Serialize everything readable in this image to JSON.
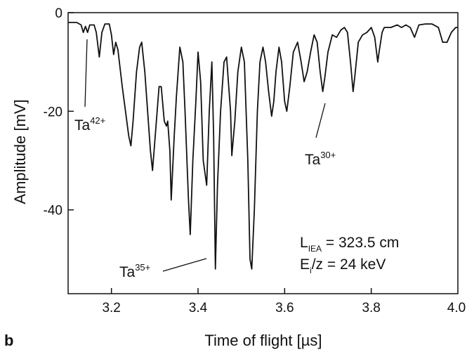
{
  "chart_data": {
    "type": "line",
    "panel_label": "b",
    "xlabel": "Time of flight [µs]",
    "ylabel": "Amplitude [mV]",
    "xlim": [
      3.1,
      4.0
    ],
    "ylim": [
      -57,
      0
    ],
    "grid": false,
    "x_ticks": [
      3.2,
      3.4,
      3.6,
      3.8
    ],
    "x_tick_labels": [
      "3.2",
      "3.4",
      "3.6",
      "3.8"
    ],
    "x_end_label": "4.0",
    "y_ticks": [
      0,
      -20,
      -40
    ],
    "y_tick_labels": [
      "0",
      "-20",
      "-40"
    ],
    "series": [
      {
        "points": [
          [
            3.1,
            -2
          ],
          [
            3.12,
            -2
          ],
          [
            3.13,
            -2.5
          ],
          [
            3.135,
            -4
          ],
          [
            3.14,
            -2.8
          ],
          [
            3.145,
            -4
          ],
          [
            3.15,
            -2.5
          ],
          [
            3.16,
            -2.5
          ],
          [
            3.165,
            -4
          ],
          [
            3.172,
            -9
          ],
          [
            3.178,
            -4
          ],
          [
            3.185,
            -2.3
          ],
          [
            3.195,
            -2.3
          ],
          [
            3.2,
            -4.5
          ],
          [
            3.205,
            -8.5
          ],
          [
            3.21,
            -6
          ],
          [
            3.215,
            -7.5
          ],
          [
            3.225,
            -15
          ],
          [
            3.24,
            -25
          ],
          [
            3.245,
            -27
          ],
          [
            3.25,
            -22
          ],
          [
            3.258,
            -12
          ],
          [
            3.265,
            -7
          ],
          [
            3.27,
            -6
          ],
          [
            3.277,
            -12
          ],
          [
            3.29,
            -28
          ],
          [
            3.295,
            -32
          ],
          [
            3.302,
            -24
          ],
          [
            3.31,
            -15
          ],
          [
            3.315,
            -15
          ],
          [
            3.322,
            -22
          ],
          [
            3.327,
            -23
          ],
          [
            3.33,
            -22
          ],
          [
            3.335,
            -28
          ],
          [
            3.338,
            -38
          ],
          [
            3.345,
            -25
          ],
          [
            3.35,
            -17
          ],
          [
            3.358,
            -7
          ],
          [
            3.365,
            -10
          ],
          [
            3.37,
            -20
          ],
          [
            3.378,
            -38
          ],
          [
            3.382,
            -45
          ],
          [
            3.388,
            -30
          ],
          [
            3.395,
            -18
          ],
          [
            3.4,
            -8
          ],
          [
            3.406,
            -14
          ],
          [
            3.412,
            -30
          ],
          [
            3.42,
            -35
          ],
          [
            3.426,
            -20
          ],
          [
            3.432,
            -10
          ],
          [
            3.436,
            -25
          ],
          [
            3.44,
            -52
          ],
          [
            3.445,
            -35
          ],
          [
            3.452,
            -20
          ],
          [
            3.46,
            -10
          ],
          [
            3.466,
            -9
          ],
          [
            3.47,
            -14
          ],
          [
            3.475,
            -20
          ],
          [
            3.478,
            -29
          ],
          [
            3.485,
            -22
          ],
          [
            3.492,
            -12
          ],
          [
            3.5,
            -7
          ],
          [
            3.507,
            -10
          ],
          [
            3.515,
            -30
          ],
          [
            3.52,
            -50
          ],
          [
            3.524,
            -52
          ],
          [
            3.53,
            -40
          ],
          [
            3.537,
            -20
          ],
          [
            3.543,
            -10
          ],
          [
            3.55,
            -7
          ],
          [
            3.556,
            -10
          ],
          [
            3.563,
            -16
          ],
          [
            3.57,
            -21
          ],
          [
            3.575,
            -18
          ],
          [
            3.58,
            -12
          ],
          [
            3.587,
            -7
          ],
          [
            3.593,
            -10
          ],
          [
            3.6,
            -18
          ],
          [
            3.605,
            -20
          ],
          [
            3.612,
            -15
          ],
          [
            3.62,
            -8
          ],
          [
            3.63,
            -6
          ],
          [
            3.638,
            -10
          ],
          [
            3.645,
            -14
          ],
          [
            3.652,
            -12
          ],
          [
            3.66,
            -8
          ],
          [
            3.668,
            -4.5
          ],
          [
            3.675,
            -6
          ],
          [
            3.682,
            -12
          ],
          [
            3.688,
            -16
          ],
          [
            3.693,
            -13
          ],
          [
            3.7,
            -8
          ],
          [
            3.71,
            -4.5
          ],
          [
            3.72,
            -5
          ],
          [
            3.73,
            -3.5
          ],
          [
            3.738,
            -3
          ],
          [
            3.745,
            -4
          ],
          [
            3.752,
            -10
          ],
          [
            3.758,
            -16
          ],
          [
            3.762,
            -13
          ],
          [
            3.77,
            -6
          ],
          [
            3.78,
            -4.5
          ],
          [
            3.79,
            -4
          ],
          [
            3.8,
            -3
          ],
          [
            3.808,
            -5
          ],
          [
            3.815,
            -10
          ],
          [
            3.818,
            -8
          ],
          [
            3.825,
            -4
          ],
          [
            3.83,
            -3
          ],
          [
            3.845,
            -3
          ],
          [
            3.86,
            -2.5
          ],
          [
            3.87,
            -3
          ],
          [
            3.88,
            -2.5
          ],
          [
            3.89,
            -3
          ],
          [
            3.9,
            -5
          ],
          [
            3.91,
            -2.5
          ],
          [
            3.925,
            -2.3
          ],
          [
            3.94,
            -2.3
          ],
          [
            3.955,
            -3
          ],
          [
            3.965,
            -6
          ],
          [
            3.975,
            -6
          ],
          [
            3.985,
            -4
          ],
          [
            3.995,
            -3
          ],
          [
            4.0,
            -3
          ]
        ]
      }
    ],
    "annotations": [
      {
        "base": "Ta",
        "sup": "42+",
        "target": [
          3.14,
          -20
        ]
      },
      {
        "base": "Ta",
        "sup": "35+",
        "target": [
          3.44,
          -50
        ]
      },
      {
        "base": "Ta",
        "sup": "30+",
        "target": [
          3.7,
          -20
        ]
      }
    ],
    "params": [
      {
        "base": "L",
        "sub": "IEA",
        "rest": " = 323.5 cm"
      },
      {
        "base": "E",
        "sub": "i",
        "rest": "/z = 24 keV"
      }
    ]
  }
}
